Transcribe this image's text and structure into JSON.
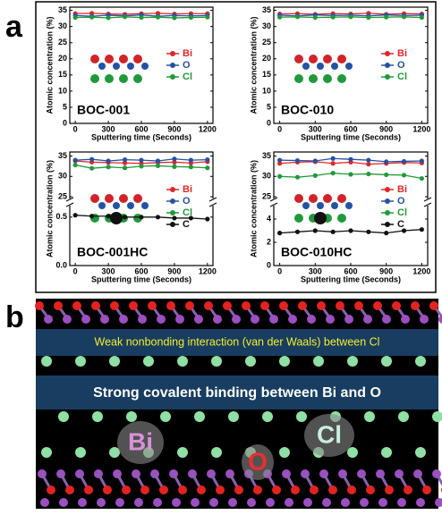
{
  "panel_labels": [
    "a",
    "b"
  ],
  "chart_data": [
    {
      "type": "line",
      "annotation": "BOC-001",
      "xlabel": "Sputtering time (Seconds)",
      "ylabel": "Atomic concentration (%)",
      "x": [
        0,
        150,
        300,
        450,
        600,
        750,
        900,
        1050,
        1200
      ],
      "xlim": [
        -50,
        1250
      ],
      "xticks": [
        0,
        300,
        600,
        900,
        1200
      ],
      "ylim": [
        0,
        36
      ],
      "yticks": [
        0,
        5,
        10,
        15,
        20,
        25,
        30,
        35
      ],
      "series": [
        {
          "name": "Bi",
          "color": "#e0262b",
          "values": [
            34.0,
            34.1,
            33.9,
            33.8,
            34.0,
            34.1,
            33.9,
            34.0,
            34.0
          ]
        },
        {
          "name": "O",
          "color": "#2452a4",
          "values": [
            33.4,
            33.2,
            33.5,
            33.3,
            33.6,
            33.2,
            33.4,
            33.3,
            33.4
          ]
        },
        {
          "name": "Cl",
          "color": "#1f9a3a",
          "values": [
            32.8,
            32.9,
            32.7,
            33.0,
            32.8,
            32.9,
            32.7,
            32.8,
            32.9
          ]
        }
      ]
    },
    {
      "type": "line",
      "annotation": "BOC-010",
      "xlabel": "Sputtering time (Seconds)",
      "ylabel": "Atomic concentration (%)",
      "x": [
        0,
        150,
        300,
        450,
        600,
        750,
        900,
        1050,
        1200
      ],
      "xlim": [
        -50,
        1250
      ],
      "xticks": [
        0,
        300,
        600,
        900,
        1200
      ],
      "ylim": [
        0,
        36
      ],
      "yticks": [
        0,
        5,
        10,
        15,
        20,
        25,
        30,
        35
      ],
      "series": [
        {
          "name": "Bi",
          "color": "#e0262b",
          "values": [
            33.9,
            34.0,
            33.8,
            34.0,
            33.9,
            34.1,
            33.8,
            34.0,
            33.9
          ]
        },
        {
          "name": "O",
          "color": "#2452a4",
          "values": [
            33.5,
            33.3,
            33.6,
            33.4,
            33.5,
            33.3,
            33.6,
            33.4,
            33.5
          ]
        },
        {
          "name": "Cl",
          "color": "#1f9a3a",
          "values": [
            32.9,
            33.0,
            32.8,
            32.9,
            33.0,
            32.8,
            32.9,
            33.0,
            32.8
          ]
        }
      ]
    },
    {
      "type": "line",
      "annotation": "BOC-001HC",
      "xlabel": "Sputtering time (Seconds)",
      "ylabel": "Atomic concentration (%)",
      "x": [
        0,
        150,
        300,
        450,
        600,
        750,
        900,
        1050,
        1200
      ],
      "xlim": [
        -50,
        1250
      ],
      "xticks": [
        0,
        300,
        600,
        900,
        1200
      ],
      "ylim": [
        0,
        0.6
      ],
      "yticks": [
        {
          "value": 0,
          "label": "0.0"
        },
        {
          "value": 0.5,
          "label": "0.5"
        }
      ],
      "ylim_upper": [
        25,
        36
      ],
      "yticks_upper": [
        25,
        30,
        35
      ],
      "series": [
        {
          "name": "Bi",
          "color": "#e0262b",
          "axis": "upper",
          "values": [
            33.8,
            33.5,
            33.4,
            33.3,
            33.2,
            33.4,
            33.5,
            33.3,
            33.6
          ]
        },
        {
          "name": "O",
          "color": "#2452a4",
          "axis": "upper",
          "values": [
            34.0,
            34.2,
            33.8,
            34.1,
            34.0,
            33.8,
            34.3,
            34.0,
            34.1
          ]
        },
        {
          "name": "Cl",
          "color": "#1f9a3a",
          "axis": "upper",
          "values": [
            32.8,
            32.0,
            32.3,
            32.1,
            32.5,
            32.6,
            32.4,
            32.3,
            32.1
          ]
        },
        {
          "name": "C",
          "color": "#111111",
          "values": [
            0.52,
            0.51,
            0.51,
            0.5,
            0.5,
            0.5,
            0.49,
            0.49,
            0.48
          ]
        }
      ]
    },
    {
      "type": "line",
      "annotation": "BOC-010HC",
      "xlabel": "Sputtering time (Seconds)",
      "ylabel": "Atomic concentration (%)",
      "x": [
        0,
        150,
        300,
        450,
        600,
        750,
        900,
        1050,
        1200
      ],
      "xlim": [
        -50,
        1250
      ],
      "xticks": [
        0,
        300,
        600,
        900,
        1200
      ],
      "ylim": [
        0,
        5
      ],
      "yticks": [
        0,
        2,
        4
      ],
      "ylim_upper": [
        25,
        36
      ],
      "yticks_upper": [
        25,
        30,
        35
      ],
      "series": [
        {
          "name": "Bi",
          "color": "#e0262b",
          "axis": "upper",
          "values": [
            33.2,
            33.5,
            33.6,
            33.2,
            33.5,
            33.0,
            33.2,
            33.4,
            33.3
          ]
        },
        {
          "name": "O",
          "color": "#2452a4",
          "axis": "upper",
          "values": [
            34.0,
            33.9,
            33.8,
            34.4,
            34.2,
            34.0,
            33.6,
            33.7,
            33.8
          ]
        },
        {
          "name": "Cl",
          "color": "#1f9a3a",
          "axis": "upper",
          "values": [
            30.0,
            29.8,
            30.2,
            30.8,
            30.5,
            30.6,
            30.4,
            30.3,
            29.5
          ]
        },
        {
          "name": "C",
          "color": "#111111",
          "values": [
            2.8,
            2.9,
            3.0,
            2.9,
            3.0,
            2.9,
            2.8,
            3.0,
            3.1
          ]
        }
      ]
    }
  ],
  "panel_b": {
    "band_top": "Weak nonbonding interaction (van der Waals) between Cl",
    "band_bottom": "Strong covalent binding between Bi and O",
    "atom_labels": [
      "Bi",
      "O",
      "Cl"
    ]
  }
}
